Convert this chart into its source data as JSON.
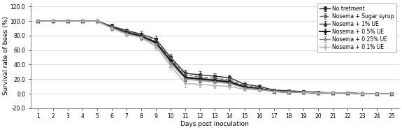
{
  "days": [
    1,
    2,
    3,
    4,
    5,
    6,
    7,
    8,
    9,
    10,
    11,
    12,
    13,
    14,
    15,
    16,
    17,
    18,
    19,
    20,
    21,
    22,
    23,
    24,
    25
  ],
  "series": [
    {
      "name": "No tretment",
      "y": [
        100,
        100,
        100,
        100,
        100,
        93,
        87,
        82,
        75,
        50,
        28,
        26,
        24,
        22,
        13,
        10,
        5,
        4,
        3,
        2,
        1,
        1,
        0,
        0,
        0
      ],
      "yerr": [
        0,
        0,
        0,
        0,
        2,
        3,
        3,
        4,
        5,
        5,
        5,
        5,
        4,
        4,
        3,
        3,
        2,
        1,
        1,
        1,
        1,
        0,
        0,
        0,
        0
      ],
      "color": "#2b2b2b",
      "marker": "s",
      "linestyle": "-",
      "linewidth": 1.0,
      "markersize": 3.0
    },
    {
      "name": "Nosema + Sugar syrup",
      "y": [
        100,
        100,
        100,
        100,
        100,
        92,
        86,
        80,
        72,
        48,
        26,
        23,
        21,
        19,
        11,
        8,
        4,
        3,
        2,
        1,
        1,
        1,
        0,
        0,
        0
      ],
      "yerr": [
        0,
        0,
        0,
        0,
        2,
        3,
        3,
        4,
        5,
        5,
        5,
        5,
        4,
        4,
        3,
        3,
        2,
        1,
        1,
        1,
        1,
        0,
        0,
        0,
        0
      ],
      "color": "#666666",
      "marker": "s",
      "linestyle": "--",
      "linewidth": 1.0,
      "markersize": 3.0
    },
    {
      "name": "Nosema + 1% UE",
      "y": [
        100,
        100,
        100,
        100,
        100,
        92,
        85,
        80,
        71,
        46,
        23,
        21,
        19,
        17,
        10,
        7,
        3,
        2,
        2,
        1,
        1,
        1,
        0,
        0,
        0
      ],
      "yerr": [
        0,
        0,
        0,
        0,
        2,
        3,
        3,
        4,
        5,
        5,
        5,
        5,
        4,
        4,
        3,
        3,
        2,
        1,
        1,
        1,
        1,
        0,
        0,
        0,
        0
      ],
      "color": "#3a3a3a",
      "marker": "^",
      "linestyle": "-",
      "linewidth": 1.0,
      "markersize": 3.5
    },
    {
      "name": "Nosema + 0.5% UE",
      "y": [
        100,
        100,
        100,
        100,
        100,
        91,
        84,
        79,
        70,
        45,
        22,
        20,
        18,
        16,
        9,
        7,
        3,
        2,
        2,
        1,
        1,
        1,
        0,
        0,
        0
      ],
      "yerr": [
        0,
        0,
        0,
        0,
        2,
        3,
        3,
        4,
        5,
        5,
        5,
        5,
        4,
        4,
        3,
        3,
        2,
        1,
        1,
        1,
        1,
        0,
        0,
        0,
        0
      ],
      "color": "#111111",
      "marker": "D",
      "linestyle": "-",
      "linewidth": 1.3,
      "markersize": 2.5
    },
    {
      "name": "Nosema + 0.25% UE",
      "y": [
        100,
        100,
        100,
        100,
        100,
        91,
        83,
        78,
        68,
        42,
        20,
        18,
        16,
        14,
        8,
        6,
        3,
        2,
        2,
        1,
        1,
        1,
        0,
        0,
        0
      ],
      "yerr": [
        0,
        0,
        0,
        0,
        2,
        3,
        3,
        4,
        5,
        5,
        5,
        5,
        4,
        4,
        3,
        3,
        2,
        1,
        1,
        1,
        1,
        0,
        0,
        0,
        0
      ],
      "color": "#888888",
      "marker": "o",
      "linestyle": "-",
      "linewidth": 1.0,
      "markersize": 2.5
    },
    {
      "name": "Nosema + 0.1% UE",
      "y": [
        100,
        100,
        100,
        100,
        100,
        90,
        82,
        77,
        65,
        38,
        14,
        13,
        11,
        10,
        6,
        5,
        3,
        2,
        2,
        1,
        1,
        1,
        0,
        0,
        0
      ],
      "yerr": [
        0,
        0,
        0,
        0,
        2,
        3,
        3,
        4,
        5,
        5,
        5,
        4,
        3,
        3,
        2,
        2,
        1,
        1,
        1,
        1,
        1,
        0,
        0,
        0,
        0
      ],
      "color": "#b0b0b0",
      "marker": "o",
      "linestyle": "-",
      "linewidth": 1.0,
      "markersize": 2.5
    }
  ],
  "xlabel": "Days post inoculation",
  "ylabel": "Survival rate of bees (%)",
  "ylim": [
    -20,
    125
  ],
  "yticks": [
    -20,
    0,
    20,
    40,
    60,
    80,
    100,
    120
  ],
  "ytick_labels": [
    "-20.0",
    "0.0",
    "20.0",
    "40.0",
    "60.0",
    "80.0",
    "100.0",
    "120.0"
  ],
  "grid_color": "#d0d0d0",
  "legend_fontsize": 5.5,
  "axis_fontsize": 6.5,
  "tick_fontsize": 5.5
}
